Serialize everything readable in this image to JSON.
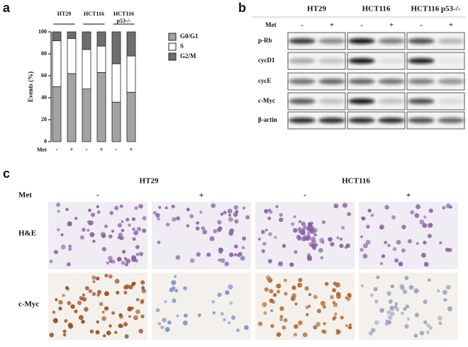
{
  "panel_labels": [
    "a",
    "b",
    "c"
  ],
  "chart_data": {
    "type": "stacked_bar",
    "y_label": "Events (%)",
    "x_label": "Met",
    "categories": [
      "-",
      "+",
      "-",
      "+",
      "-",
      "+"
    ],
    "groups": [
      [
        "HT29"
      ],
      [
        "HCT116"
      ],
      [
        "HCT116",
        "p53-/-"
      ]
    ],
    "series": [
      {
        "name": "G0/G1",
        "color": "#a3a3a3",
        "values": [
          50,
          62,
          48,
          63,
          36,
          45
        ]
      },
      {
        "name": "S",
        "color": "#ffffff",
        "values": [
          42,
          32,
          36,
          24,
          35,
          33
        ]
      },
      {
        "name": "G2/M",
        "color": "#6e6e6e",
        "values": [
          8,
          6,
          16,
          13,
          29,
          22
        ]
      }
    ],
    "ylim": [
      0,
      100
    ],
    "yticks": [
      0,
      20,
      40,
      60,
      80,
      100
    ]
  },
  "blot": {
    "groups": [
      "HT29",
      "HCT116",
      "HCT116 p53-/-"
    ],
    "treatment_label": "Met",
    "treatments": [
      "-",
      "+"
    ],
    "rows": [
      "p-Rb",
      "cycD1",
      "cycE",
      "c-Myc",
      "β-actin"
    ]
  },
  "micrographs": {
    "columns": [
      "HT29",
      "HCT116"
    ],
    "treatment_label": "Met",
    "treatments": [
      "-",
      "+",
      "-",
      "+"
    ],
    "rows": [
      "H&E",
      "c-Myc"
    ]
  }
}
